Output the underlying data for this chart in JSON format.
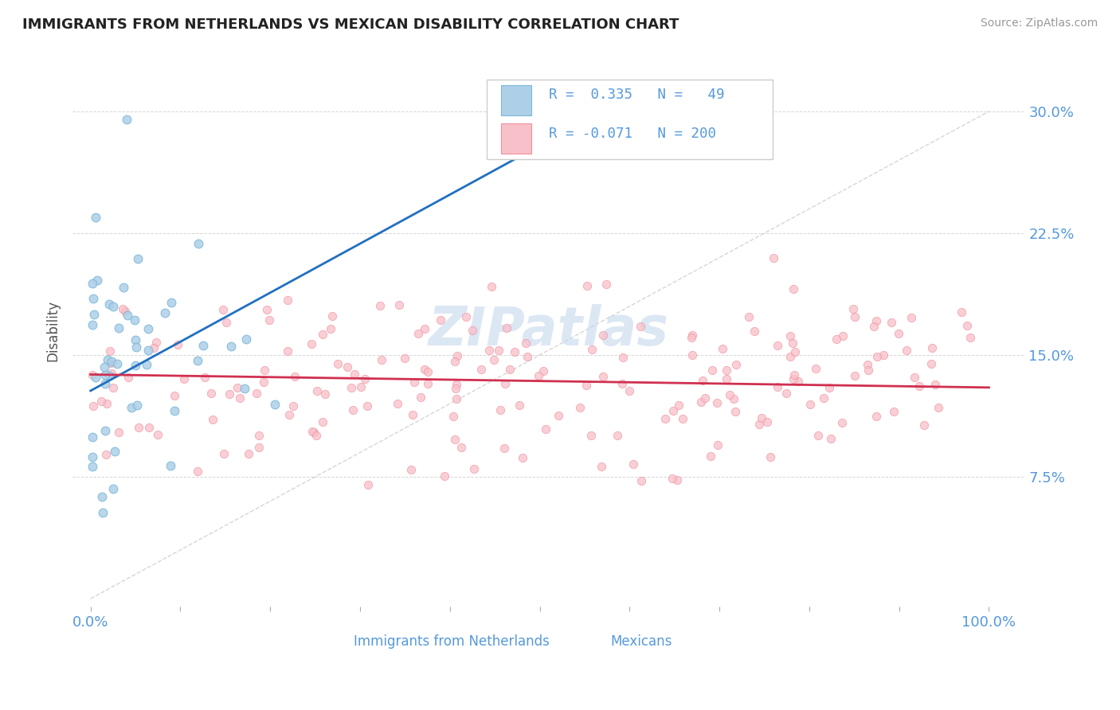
{
  "title": "IMMIGRANTS FROM NETHERLANDS VS MEXICAN DISABILITY CORRELATION CHART",
  "source": "Source: ZipAtlas.com",
  "ylabel": "Disability",
  "legend_label1": "Immigrants from Netherlands",
  "legend_label2": "Mexicans",
  "blue_edge": "#7ab8d9",
  "blue_face": "#aecfe8",
  "pink_edge": "#f090a0",
  "pink_face": "#f8c0c8",
  "trend_blue": "#2070c0",
  "trend_pink": "#d03050",
  "tick_color": "#5599dd",
  "watermark_color": "#c5d8ee",
  "grid_color": "#cccccc",
  "ref_line_color": "#bbbbbb",
  "title_color": "#222222",
  "source_color": "#999999",
  "ylabel_color": "#555555",
  "legend_border": "#cccccc",
  "blue_trend_x": [
    0.0,
    0.52
  ],
  "blue_trend_y": [
    0.128,
    0.285
  ],
  "pink_trend_x": [
    0.0,
    1.0
  ],
  "pink_trend_y": [
    0.138,
    0.13
  ],
  "xlim": [
    -0.02,
    1.04
  ],
  "ylim": [
    -0.005,
    0.335
  ],
  "yticks": [
    0.0,
    0.075,
    0.15,
    0.225,
    0.3
  ],
  "ytick_labels_right": [
    "",
    "7.5%",
    "15.0%",
    "22.5%",
    "30.0%"
  ],
  "xticks": [
    0.0,
    0.1,
    0.2,
    0.3,
    0.4,
    0.5,
    0.6,
    0.7,
    0.8,
    0.9,
    1.0
  ],
  "seed": 12345
}
